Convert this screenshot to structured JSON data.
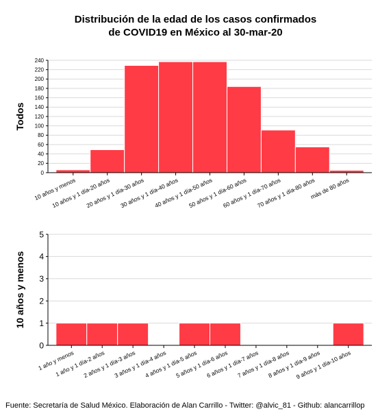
{
  "title_line1": "Distribución de la edad de los casos confirmados",
  "title_line2": "de COVID19 en México al 30-mar-20",
  "caption": "Fuente: Secretaría de Salud México. Elaboración de Alan Carrillo - Twitter: @alvic_81 - Github: alancarrillop",
  "colors": {
    "bar": "#ff3b46",
    "bar_stroke": "#ffffff",
    "grid": "#d9d9d9",
    "axis": "#000000"
  },
  "chart_data": [
    {
      "type": "bar",
      "title": "",
      "ylabel": "Todos",
      "xlabel": "",
      "ylim": [
        0,
        240
      ],
      "yticks": [
        0,
        20,
        40,
        60,
        80,
        100,
        120,
        140,
        160,
        180,
        200,
        220,
        240
      ],
      "grid": true,
      "categories": [
        "10 años y menos",
        "10 años y 1 día-20 años",
        "20 años y 1 día-30 años",
        "30 años y 1 día-40 años",
        "40 años y 1 día-50 años",
        "50 años y 1 día-60 años",
        "60 años y 1 día-70 años",
        "70 años y 1 día-80 años",
        "más de 80 años"
      ],
      "values": [
        6,
        49,
        229,
        237,
        237,
        184,
        91,
        55,
        5
      ]
    },
    {
      "type": "bar",
      "title": "",
      "ylabel": "10 años y menos",
      "xlabel": "",
      "ylim": [
        0,
        5
      ],
      "yticks": [
        0,
        1,
        2,
        3,
        4,
        5
      ],
      "grid": true,
      "categories": [
        "1 año y menos",
        "1 año y 1 día-2 años",
        "2 años y 1 día-3 años",
        "3 años y 1 día-4 años",
        "4 años y 1 día-5 años",
        "5 años y 1 día-6 años",
        "6 años y 1 día-7 años",
        "7 años y 1 día-8 años",
        "8 años y 1 día-9 años",
        "9 años y 1 día-10 años"
      ],
      "values": [
        1,
        1,
        1,
        0,
        1,
        1,
        0,
        0,
        0,
        1
      ]
    }
  ]
}
